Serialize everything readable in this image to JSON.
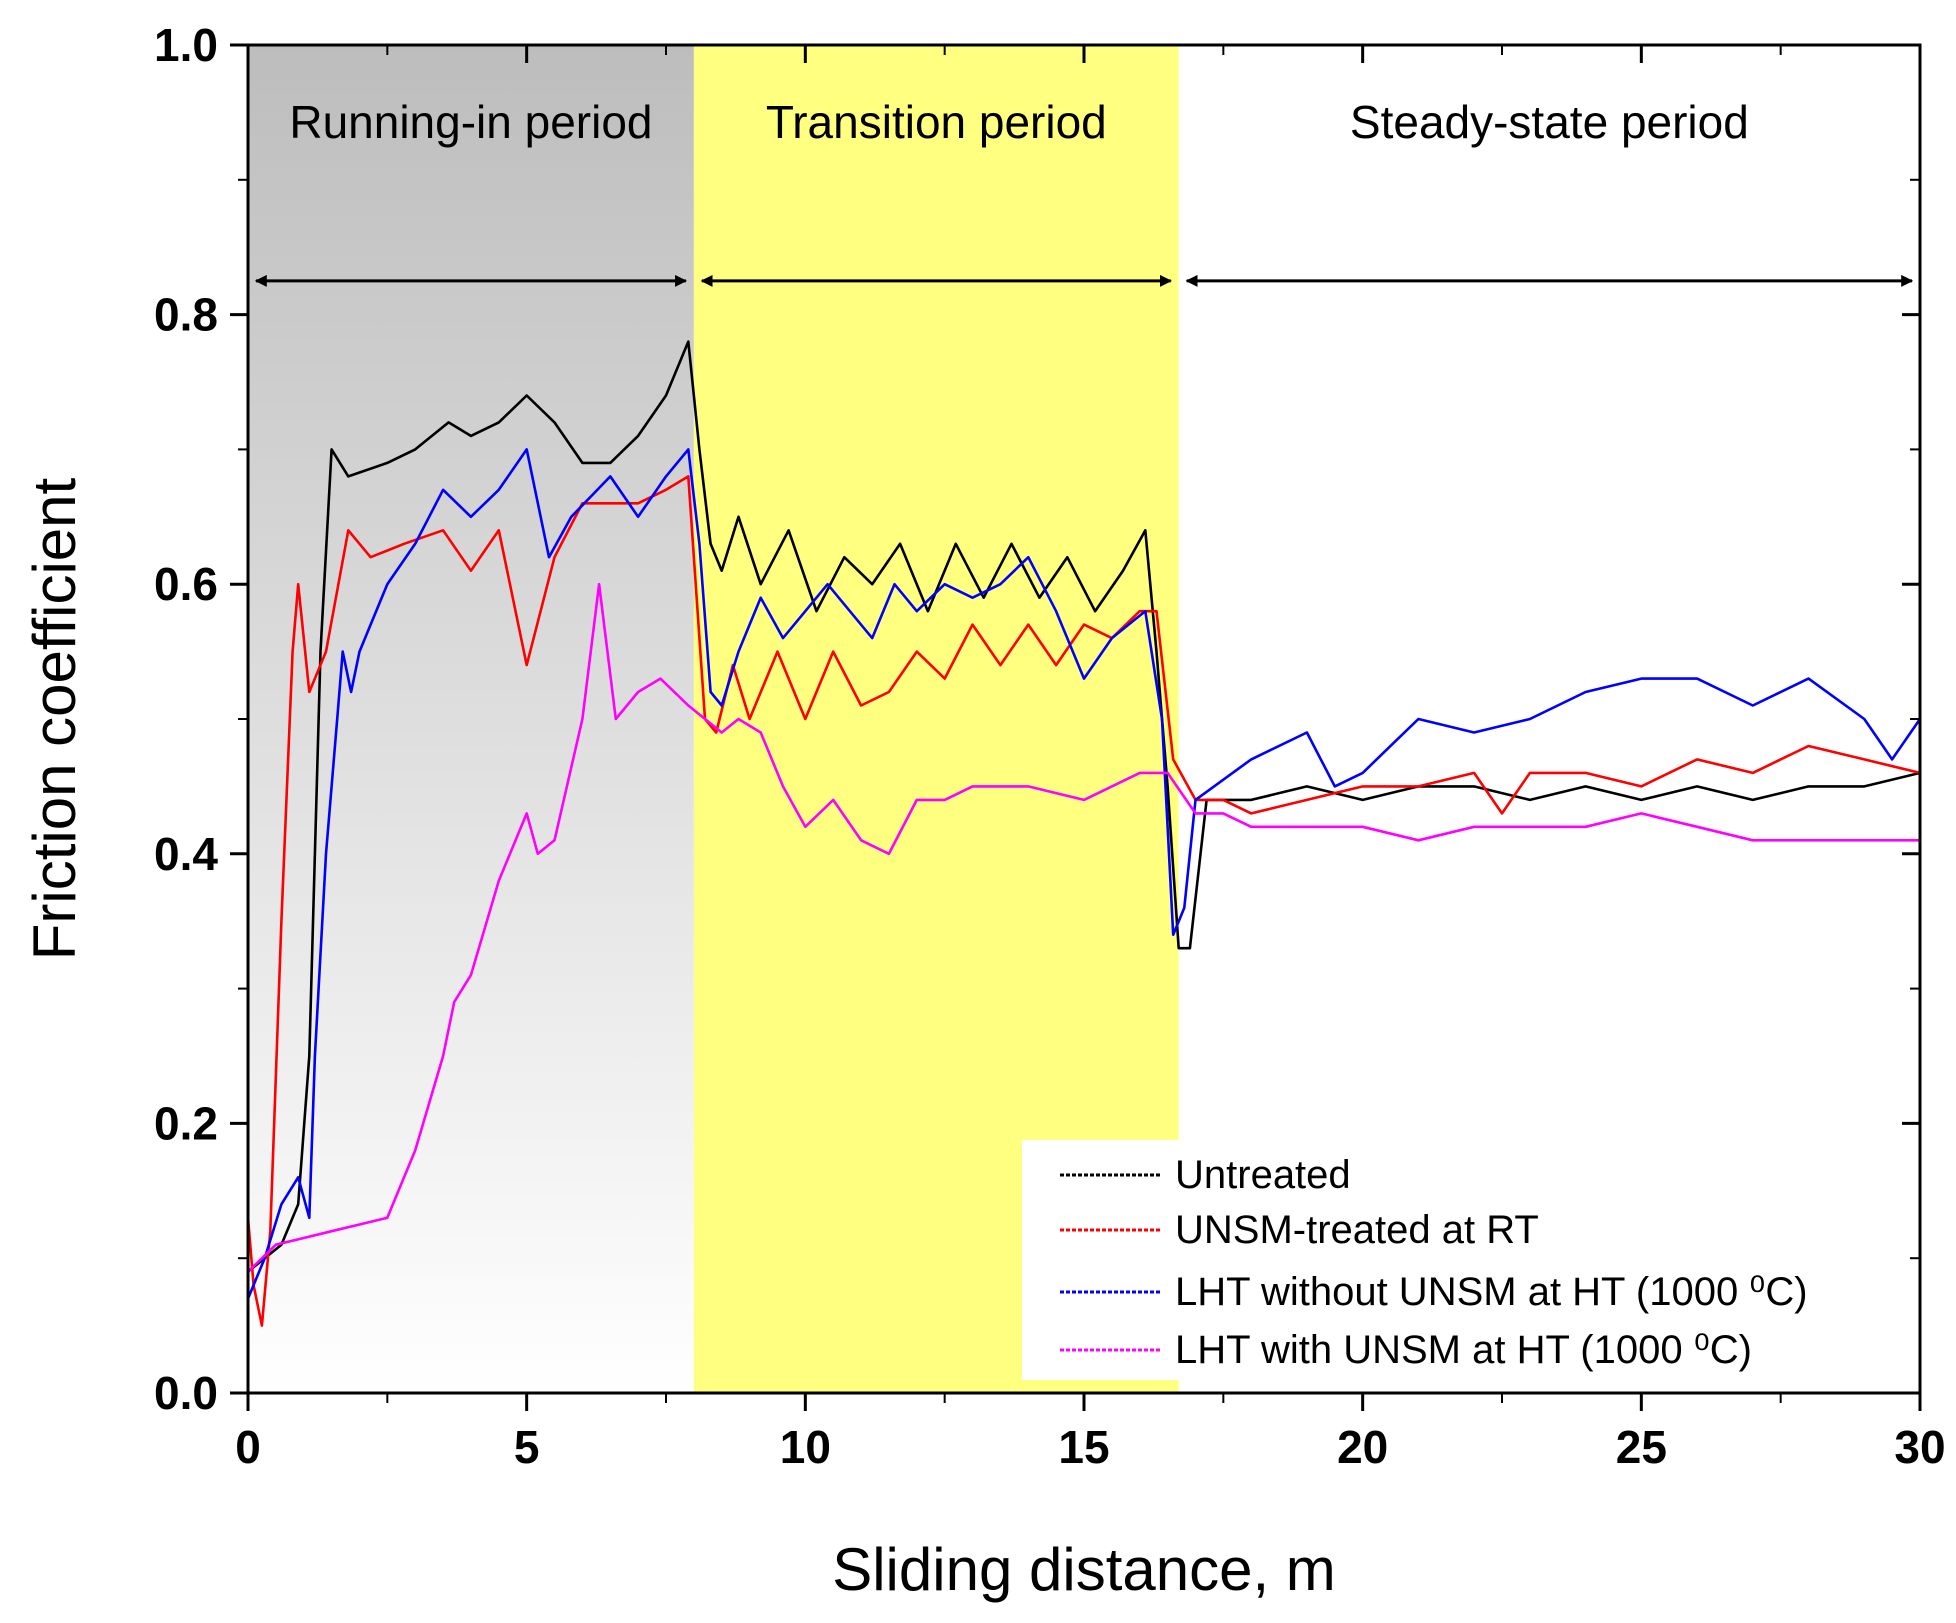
{
  "chart_data": {
    "type": "line",
    "title": "",
    "xlabel": "Sliding distance, m",
    "ylabel": "Friction coefficient",
    "xlim": [
      0,
      30
    ],
    "ylim": [
      0.0,
      1.0
    ],
    "xticks": [
      0,
      5,
      10,
      15,
      20,
      25,
      30
    ],
    "xtick_labels": [
      "0",
      "5",
      "10",
      "15",
      "20",
      "25",
      "30"
    ],
    "yticks": [
      0.0,
      0.2,
      0.4,
      0.6,
      0.8,
      1.0
    ],
    "ytick_labels": [
      "0.0",
      "0.2",
      "0.4",
      "0.6",
      "0.8",
      "1.0"
    ],
    "grid": false,
    "legend_position": "bottom-right",
    "regions": [
      {
        "label": "Running-in period",
        "x_start": 0,
        "x_end": 8,
        "color_top": "#bdbdbd",
        "color_bottom": "#ffffff"
      },
      {
        "label": "Transition period",
        "x_start": 8,
        "x_end": 16.7,
        "color_top": "#ffff80",
        "color_bottom": "#ffff80"
      },
      {
        "label": "Steady-state period",
        "x_start": 16.7,
        "x_end": 30,
        "color_top": "#ffffff",
        "color_bottom": "#ffffff"
      }
    ],
    "arrow_y": 0.825,
    "series": [
      {
        "name": "Untreated",
        "color": "#000000",
        "x": [
          0,
          0.3,
          0.6,
          0.9,
          1.1,
          1.3,
          1.5,
          1.8,
          2.5,
          3.0,
          3.6,
          4.0,
          4.5,
          5.0,
          5.5,
          6.0,
          6.5,
          7.0,
          7.5,
          7.9,
          8.1,
          8.3,
          8.5,
          8.8,
          9.2,
          9.7,
          10.2,
          10.7,
          11.2,
          11.7,
          12.2,
          12.7,
          13.2,
          13.7,
          14.2,
          14.7,
          15.2,
          15.7,
          16.1,
          16.3,
          16.5,
          16.7,
          16.9,
          17.2,
          18,
          19,
          20,
          21,
          22,
          23,
          24,
          25,
          26,
          27,
          28,
          29,
          30
        ],
        "y": [
          0.09,
          0.1,
          0.11,
          0.14,
          0.25,
          0.55,
          0.7,
          0.68,
          0.69,
          0.7,
          0.72,
          0.71,
          0.72,
          0.74,
          0.72,
          0.69,
          0.69,
          0.71,
          0.74,
          0.78,
          0.7,
          0.63,
          0.61,
          0.65,
          0.6,
          0.64,
          0.58,
          0.62,
          0.6,
          0.63,
          0.58,
          0.63,
          0.59,
          0.63,
          0.59,
          0.62,
          0.58,
          0.61,
          0.64,
          0.55,
          0.45,
          0.33,
          0.33,
          0.44,
          0.44,
          0.45,
          0.44,
          0.45,
          0.45,
          0.44,
          0.45,
          0.44,
          0.45,
          0.44,
          0.45,
          0.45,
          0.46
        ]
      },
      {
        "name": "UNSM-treated at RT",
        "color": "#ff0000",
        "x": [
          0,
          0.1,
          0.25,
          0.4,
          0.6,
          0.8,
          0.9,
          1.1,
          1.4,
          1.8,
          2.2,
          2.8,
          3.5,
          4.0,
          4.5,
          5.0,
          5.5,
          6.0,
          6.5,
          7.0,
          7.5,
          7.9,
          8.2,
          8.4,
          8.7,
          9.0,
          9.5,
          10.0,
          10.5,
          11.0,
          11.5,
          12.0,
          12.5,
          13.0,
          13.5,
          14.0,
          14.5,
          15.0,
          15.5,
          16.0,
          16.3,
          16.6,
          17.0,
          17.5,
          18,
          19,
          20,
          21,
          22,
          22.5,
          23,
          24,
          25,
          26,
          27,
          28,
          29,
          30
        ],
        "y": [
          0.13,
          0.08,
          0.05,
          0.12,
          0.35,
          0.55,
          0.6,
          0.52,
          0.55,
          0.64,
          0.62,
          0.63,
          0.64,
          0.61,
          0.64,
          0.54,
          0.62,
          0.66,
          0.66,
          0.66,
          0.67,
          0.68,
          0.5,
          0.49,
          0.54,
          0.5,
          0.55,
          0.5,
          0.55,
          0.51,
          0.52,
          0.55,
          0.53,
          0.57,
          0.54,
          0.57,
          0.54,
          0.57,
          0.56,
          0.58,
          0.58,
          0.47,
          0.44,
          0.44,
          0.43,
          0.44,
          0.45,
          0.45,
          0.46,
          0.43,
          0.46,
          0.46,
          0.45,
          0.47,
          0.46,
          0.48,
          0.47,
          0.46
        ]
      },
      {
        "name": "LHT without UNSM at HT (1000 ⁰C)",
        "color": "#0000ff",
        "x": [
          0,
          0.3,
          0.6,
          0.9,
          1.1,
          1.2,
          1.4,
          1.6,
          1.7,
          1.85,
          2.0,
          2.5,
          3.0,
          3.5,
          4.0,
          4.5,
          5.0,
          5.4,
          5.8,
          6.5,
          7.0,
          7.5,
          7.9,
          8.1,
          8.3,
          8.5,
          8.8,
          9.2,
          9.6,
          10.0,
          10.4,
          10.8,
          11.2,
          11.6,
          12.0,
          12.5,
          13.0,
          13.5,
          14.0,
          14.5,
          15.0,
          15.5,
          16.1,
          16.4,
          16.6,
          16.8,
          17.0,
          18,
          19,
          19.5,
          20,
          21,
          22,
          23,
          24,
          25,
          26,
          27,
          28,
          29,
          29.5,
          30
        ],
        "y": [
          0.07,
          0.1,
          0.14,
          0.16,
          0.13,
          0.25,
          0.4,
          0.5,
          0.55,
          0.52,
          0.55,
          0.6,
          0.63,
          0.67,
          0.65,
          0.67,
          0.7,
          0.62,
          0.65,
          0.68,
          0.65,
          0.68,
          0.7,
          0.63,
          0.52,
          0.51,
          0.55,
          0.59,
          0.56,
          0.58,
          0.6,
          0.58,
          0.56,
          0.6,
          0.58,
          0.6,
          0.59,
          0.6,
          0.62,
          0.58,
          0.53,
          0.56,
          0.58,
          0.5,
          0.34,
          0.36,
          0.44,
          0.47,
          0.49,
          0.45,
          0.46,
          0.5,
          0.49,
          0.5,
          0.52,
          0.53,
          0.53,
          0.51,
          0.53,
          0.5,
          0.47,
          0.5
        ]
      },
      {
        "name": "LHT with UNSM at HT (1000 ⁰C)",
        "color": "#ff00ff",
        "x": [
          0,
          0.5,
          1.0,
          1.5,
          2.0,
          2.5,
          3.0,
          3.5,
          3.7,
          4.0,
          4.5,
          5.0,
          5.2,
          5.5,
          6.0,
          6.3,
          6.6,
          7.0,
          7.4,
          7.9,
          8.2,
          8.5,
          8.8,
          9.2,
          9.6,
          10.0,
          10.5,
          11.0,
          11.5,
          12.0,
          12.5,
          13.0,
          13.5,
          14.0,
          15.0,
          16.0,
          16.5,
          17.0,
          17.5,
          18,
          19,
          20,
          21,
          22,
          23,
          24,
          25,
          26,
          27,
          28,
          29,
          30
        ],
        "y": [
          0.09,
          0.11,
          0.115,
          0.12,
          0.125,
          0.13,
          0.18,
          0.25,
          0.29,
          0.31,
          0.38,
          0.43,
          0.4,
          0.41,
          0.5,
          0.6,
          0.5,
          0.52,
          0.53,
          0.51,
          0.5,
          0.49,
          0.5,
          0.49,
          0.45,
          0.42,
          0.44,
          0.41,
          0.4,
          0.44,
          0.44,
          0.45,
          0.45,
          0.45,
          0.44,
          0.46,
          0.46,
          0.43,
          0.43,
          0.42,
          0.42,
          0.42,
          0.41,
          0.42,
          0.42,
          0.42,
          0.43,
          0.42,
          0.41,
          0.41,
          0.41,
          0.41
        ]
      }
    ]
  }
}
